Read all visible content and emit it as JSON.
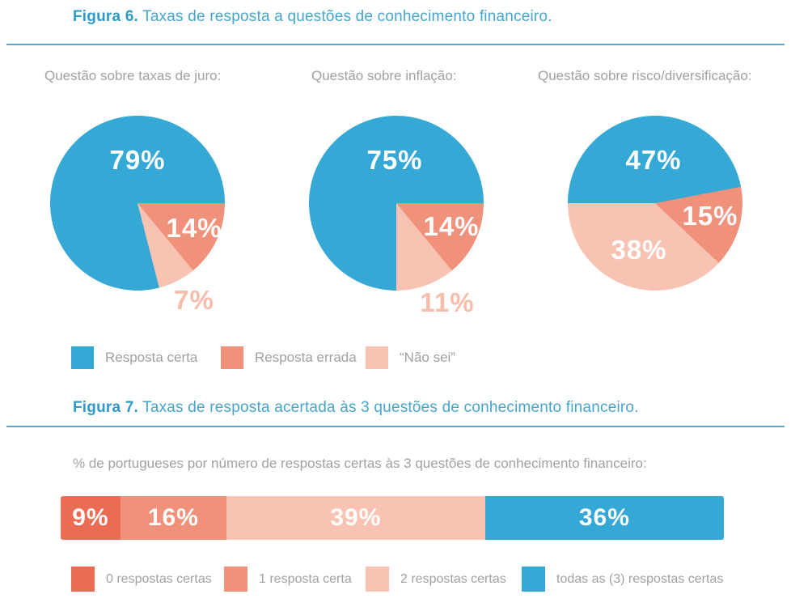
{
  "figure6": {
    "heading_prefix": "Figura 6.",
    "heading_text": " Taxas de resposta a questões de conhecimento financeiro."
  },
  "figure7": {
    "heading_prefix": "Figura 7.",
    "heading_text": " Taxas de resposta acertada às 3 questões de conhecimento financeiro.",
    "subtitle": "% de portugueses por número de respostas certas às 3  questões de conhecimento financeiro:"
  },
  "colors": {
    "correct_blue": "#35A8D5",
    "wrong_coral": "#F0917B",
    "dont_know_pink": "#F8C3B3",
    "zero_correct_red": "#EC6B54",
    "heading_teal": "#2E9BC6",
    "rule_blue": "#57ACCF",
    "label_gray": "#9FA1A3"
  },
  "chart_data": [
    {
      "type": "pie",
      "figure": "Figura 6",
      "title": "Taxas de resposta a questões de conhecimento financeiro.",
      "legend_position": "bottom",
      "legend": [
        {
          "label": "Resposta certa",
          "color": "#35A8D5"
        },
        {
          "label": "Resposta errada",
          "color": "#F0917B"
        },
        {
          "label": "“Não sei”",
          "color": "#F8C3B3"
        }
      ],
      "pies": [
        {
          "title": "Questão sobre taxas de juro:",
          "start_angle_deg": 90,
          "slices": [
            {
              "name": "Resposta errada",
              "value": 14,
              "label": "14%",
              "color": "#F0917B"
            },
            {
              "name": "Não sei",
              "value": 7,
              "label": "7%",
              "color": "#F8C3B3"
            },
            {
              "name": "Resposta certa",
              "value": 79,
              "label": "79%",
              "color": "#35A8D5"
            }
          ]
        },
        {
          "title": "Questão sobre inflação:",
          "start_angle_deg": 90,
          "slices": [
            {
              "name": "Resposta errada",
              "value": 14,
              "label": "14%",
              "color": "#F0917B"
            },
            {
              "name": "Não sei",
              "value": 11,
              "label": "11%",
              "color": "#F8C3B3"
            },
            {
              "name": "Resposta certa",
              "value": 75,
              "label": "75%",
              "color": "#35A8D5"
            }
          ]
        },
        {
          "title": "Questão sobre risco/diversificação:",
          "start_angle_deg": 79.2,
          "slices": [
            {
              "name": "Resposta errada",
              "value": 15,
              "label": "15%",
              "color": "#F0917B"
            },
            {
              "name": "Não sei",
              "value": 38,
              "label": "38%",
              "color": "#F8C3B3"
            },
            {
              "name": "Resposta certa",
              "value": 47,
              "label": "47%",
              "color": "#35A8D5"
            }
          ]
        }
      ]
    },
    {
      "type": "bar",
      "variant": "horizontal-stacked",
      "figure": "Figura 7",
      "title": "Taxas de resposta acertada às 3 questões de conhecimento financeiro.",
      "axis_label": "% de portugueses por número de respostas certas às 3 questões de conhecimento financeiro",
      "segments": [
        {
          "name": "0 respostas certas",
          "value": 9,
          "label": "9%",
          "color": "#EC6B54"
        },
        {
          "name": "1 resposta certa",
          "value": 16,
          "label": "16%",
          "color": "#F0917B"
        },
        {
          "name": "2 respostas certas",
          "value": 39,
          "label": "39%",
          "color": "#F8C3B3"
        },
        {
          "name": "todas as (3) respostas certas",
          "value": 36,
          "label": "36%",
          "color": "#35A8D5"
        }
      ],
      "legend_position": "bottom",
      "legend": [
        {
          "label": "0 respostas certas",
          "color": "#EC6B54"
        },
        {
          "label": "1 resposta certa",
          "color": "#F0917B"
        },
        {
          "label": "2 respostas certas",
          "color": "#F8C3B3"
        },
        {
          "label": "todas as (3) respostas certas",
          "color": "#35A8D5"
        }
      ]
    }
  ]
}
